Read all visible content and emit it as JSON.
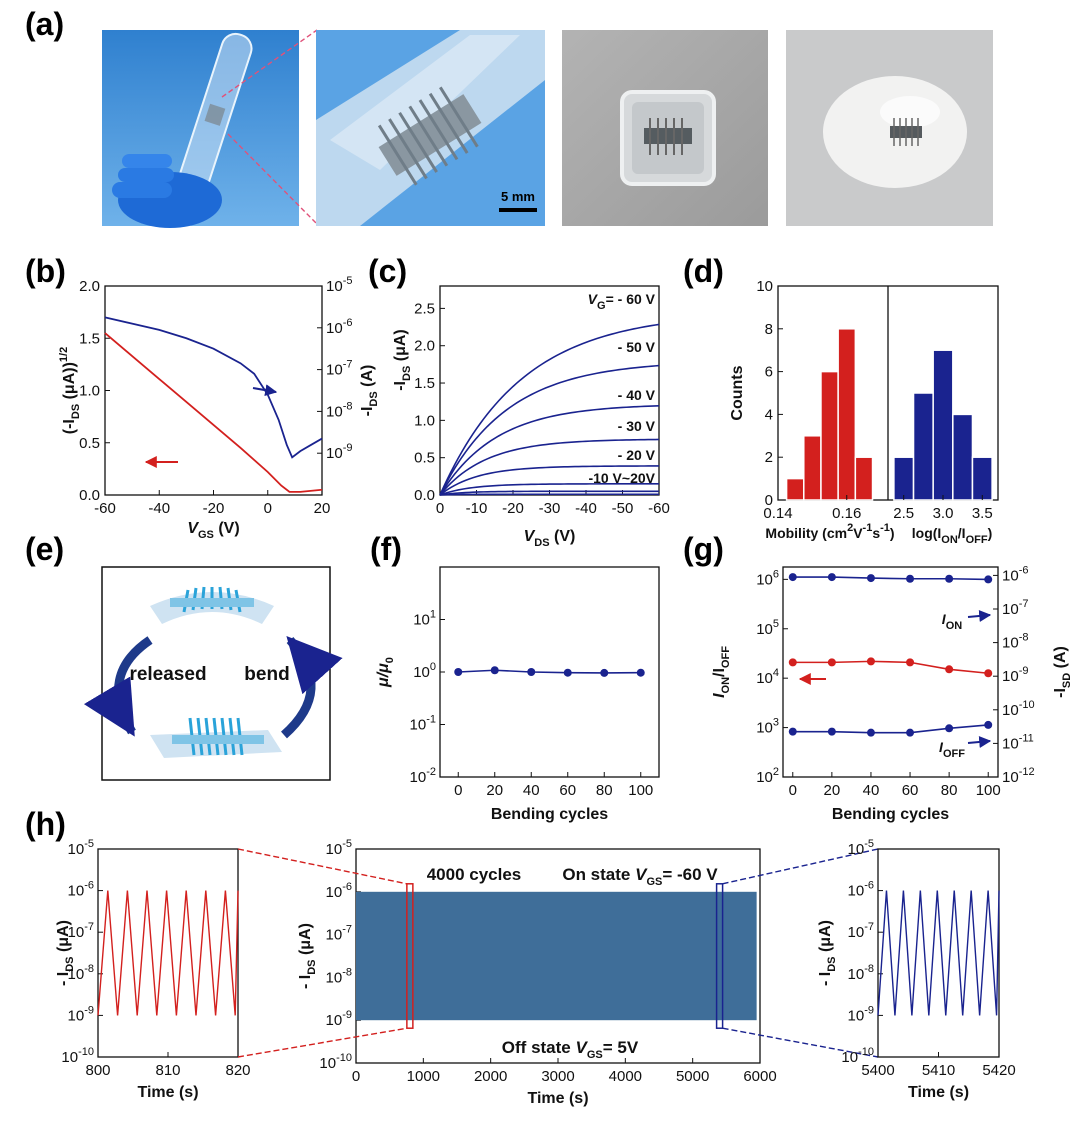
{
  "panel_labels": {
    "a": "(a)",
    "b": "(b)",
    "c": "(c)",
    "d": "(d)",
    "e": "(e)",
    "f": "(f)",
    "g": "(g)",
    "h": "(h)"
  },
  "photos": {
    "scale_bar": "5 mm"
  },
  "colors": {
    "blue": "#1a238f",
    "red": "#d3201e",
    "photo_sky": "#3d8fd6",
    "glove": "#1e6ad6",
    "photo_gray": "#a7a7a7",
    "fill_blue": "#3f6e99"
  },
  "chart_data": [
    {
      "id": "b",
      "type": "line",
      "xlabel": "V",
      "xlabel_sub": "GS",
      "xlabel_unit": " (V)",
      "ylabel": "(-I",
      "ylabel_sub": "DS",
      "ylabel_rest": " (μA))",
      "ylabel_sup": "1/2",
      "y2label": "-I",
      "y2label_sub": "DS",
      "y2label_unit": " (A)",
      "xlim": [
        -60,
        20
      ],
      "ylim": [
        0,
        2.0
      ],
      "xticks": [
        "-60",
        "-40",
        "-20",
        "0",
        "20"
      ],
      "yticks": [
        "0.0",
        "0.5",
        "1.0",
        "1.5",
        "2.0"
      ],
      "y2lim_exp": [
        -10,
        -5
      ],
      "y2ticks": [
        "10",
        "10",
        "10",
        "10",
        "10"
      ],
      "y2ticks_exp": [
        "-9",
        "-8",
        "-7",
        "-6",
        "-5"
      ],
      "series": [
        {
          "name": "sqrt(-IDS)",
          "axis": "left",
          "color": "#d3201e",
          "x": [
            -60,
            -50,
            -40,
            -30,
            -20,
            -10,
            0,
            5,
            8,
            12,
            20
          ],
          "y": [
            1.55,
            1.33,
            1.11,
            0.89,
            0.67,
            0.45,
            0.22,
            0.09,
            0.03,
            0.03,
            0.05
          ]
        },
        {
          "name": "-IDS",
          "axis": "right",
          "color": "#1a238f",
          "x": [
            -60,
            -50,
            -40,
            -30,
            -20,
            -10,
            -5,
            0,
            4,
            7,
            9,
            12,
            16,
            20
          ],
          "logy": [
            -5.75,
            -5.9,
            -6.05,
            -6.25,
            -6.5,
            -6.85,
            -7.1,
            -7.6,
            -8.2,
            -8.8,
            -9.1,
            -8.95,
            -8.8,
            -8.65
          ]
        }
      ]
    },
    {
      "id": "c",
      "type": "line",
      "xlabel": "V",
      "xlabel_sub": "DS",
      "xlabel_unit": " (V)",
      "ylabel": "-I",
      "ylabel_sub": "DS",
      "ylabel_unit": " (μA)",
      "xlim": [
        0,
        -60
      ],
      "ylim": [
        0,
        2.8
      ],
      "xticks": [
        "0",
        "-10",
        "-20",
        "-30",
        "-40",
        "-50",
        "-60"
      ],
      "yticks": [
        "0.0",
        "0.5",
        "1.0",
        "1.5",
        "2.0",
        "2.5"
      ],
      "curve_labels": [
        "= - 60 V",
        "- 50 V",
        "- 40 V",
        "- 30 V",
        "- 20 V",
        "-10 V~20V"
      ],
      "curve_label_prefix": "V",
      "curve_label_sub": "G",
      "series": [
        {
          "name": "VG=-60V",
          "isat": 2.45,
          "k": 0.045
        },
        {
          "name": "VG=-50V",
          "isat": 1.8,
          "k": 0.055
        },
        {
          "name": "VG=-40V",
          "isat": 1.22,
          "k": 0.065
        },
        {
          "name": "VG=-30V",
          "isat": 0.75,
          "k": 0.08
        },
        {
          "name": "VG=-20V",
          "isat": 0.39,
          "k": 0.1
        },
        {
          "name": "VG=-10V",
          "isat": 0.15,
          "k": 0.12
        },
        {
          "name": "VG=0V",
          "isat": 0.05,
          "k": 0.15
        },
        {
          "name": "VG=20V",
          "isat": 0.01,
          "k": 0.2
        }
      ]
    },
    {
      "id": "d",
      "type": "bar",
      "ylabel": "Counts",
      "ylim": [
        0,
        10
      ],
      "yticks": [
        "0",
        "2",
        "4",
        "6",
        "8",
        "10"
      ],
      "left": {
        "xlabel": "Mobility (cm",
        "xlabel_sup1": "2",
        "xlabel_mid": "V",
        "xlabel_sup2": "-1",
        "xlabel_end": "s",
        "xlabel_sup3": "-1",
        "xlabel_close": ")",
        "xlim": [
          0.14,
          0.172
        ],
        "xticks": [
          "0.14",
          "0.16"
        ],
        "xtick_vals": [
          0.14,
          0.16
        ],
        "bin_width": 0.005,
        "color": "#d3201e",
        "bins": [
          0.145,
          0.15,
          0.155,
          0.16,
          0.165
        ],
        "counts": [
          1,
          3,
          6,
          8,
          2
        ]
      },
      "right": {
        "xlabel": "log(I",
        "xlabel_sub1": "ON",
        "xlabel_mid": "/I",
        "xlabel_sub2": "OFF",
        "xlabel_end": ")",
        "xlim": [
          2.3,
          3.7
        ],
        "xticks": [
          "2.5",
          "3.0",
          "3.5"
        ],
        "xtick_vals": [
          2.5,
          3.0,
          3.5
        ],
        "bin_width": 0.25,
        "color": "#1a238f",
        "bins": [
          2.5,
          2.75,
          3.0,
          3.25,
          3.5
        ],
        "counts": [
          2,
          5,
          7,
          4,
          2
        ]
      }
    },
    {
      "id": "f",
      "type": "scatter",
      "xlabel": "Bending cycles",
      "ylabel": "μ/μ",
      "ylabel_sub": "0",
      "xlim": [
        -10,
        110
      ],
      "ylim_exp": [
        -2,
        2
      ],
      "xticks": [
        "0",
        "20",
        "40",
        "60",
        "80",
        "100"
      ],
      "yticks": [
        "10",
        "10",
        "10",
        "10"
      ],
      "yticks_exp": [
        "-2",
        "-1",
        "0",
        "1"
      ],
      "color": "#1a238f",
      "x": [
        0,
        20,
        40,
        60,
        80,
        100
      ],
      "y": [
        1.0,
        1.08,
        1.0,
        0.97,
        0.96,
        0.97
      ]
    },
    {
      "id": "g",
      "type": "scatter",
      "xlabel": "Bending cycles",
      "ylabel": "I",
      "ylabel_sub1": "ON",
      "ylabel_mid": "/I",
      "ylabel_sub2": "OFF",
      "y2label": "-I",
      "y2label_sub": "SD",
      "y2label_unit": " (A)",
      "xlim": [
        -5,
        105
      ],
      "ylim_exp": [
        2,
        6.25
      ],
      "y2lim_exp": [
        -12,
        -5.75
      ],
      "xticks": [
        "0",
        "20",
        "40",
        "60",
        "80",
        "100"
      ],
      "yticks": [
        "10",
        "10",
        "10",
        "10",
        "10"
      ],
      "yticks_exp": [
        "2",
        "3",
        "4",
        "5",
        "6"
      ],
      "y2ticks": [
        "10",
        "10",
        "10",
        "10",
        "10",
        "10",
        "10"
      ],
      "y2ticks_exp": [
        "-12",
        "-11",
        "-10",
        "-9",
        "-8",
        "-7",
        "-6"
      ],
      "x": [
        0,
        20,
        40,
        60,
        80,
        100
      ],
      "series": [
        {
          "name": "ION",
          "axis": "right",
          "color": "#1a238f",
          "logy": [
            -6.05,
            -6.05,
            -6.08,
            -6.1,
            -6.1,
            -6.12
          ],
          "label": "I",
          "label_sub": "ON"
        },
        {
          "name": "ION/IOFF",
          "axis": "left",
          "color": "#d3201e",
          "logy": [
            4.32,
            4.32,
            4.34,
            4.32,
            4.18,
            4.1
          ]
        },
        {
          "name": "IOFF",
          "axis": "right",
          "color": "#1a238f",
          "logy": [
            -10.65,
            -10.65,
            -10.68,
            -10.68,
            -10.55,
            -10.45
          ],
          "label": "I",
          "label_sub": "OFF"
        }
      ]
    },
    {
      "id": "h_left",
      "type": "line",
      "xlabel": "Time  (s)",
      "ylabel": "- I",
      "ylabel_sub": "DS",
      "ylabel_unit": "  (μA)",
      "xlim": [
        800,
        820
      ],
      "xticks": [
        "800",
        "810",
        "820"
      ],
      "ylim_exp": [
        -10,
        -5
      ],
      "yticks": [
        "10",
        "10",
        "10",
        "10",
        "10",
        "10"
      ],
      "yticks_exp": [
        "-10",
        "-9",
        "-8",
        "-7",
        "-6",
        "-5"
      ],
      "color": "#d3201e",
      "period_s": 2.8,
      "low_exp": -9,
      "high_exp": -6
    },
    {
      "id": "h_main",
      "type": "area",
      "xlabel": "Time  (s)",
      "ylabel": "- I",
      "ylabel_sub": "DS",
      "ylabel_unit": "  (μA)",
      "xlim": [
        0,
        6000
      ],
      "xticks": [
        "0",
        "1000",
        "2000",
        "3000",
        "4000",
        "5000",
        "6000"
      ],
      "ylim_exp": [
        -10,
        -5
      ],
      "yticks": [
        "10",
        "10",
        "10",
        "10",
        "10",
        "10"
      ],
      "yticks_exp": [
        "-10",
        "-9",
        "-8",
        "-7",
        "-6",
        "-5"
      ],
      "fill_color": "#3f6e99",
      "x_range": [
        0,
        5950
      ],
      "low_exp": -9,
      "high_exp": -6,
      "ann_cycles": "4000 cycles",
      "ann_on": "On state ",
      "ann_on_v": "V",
      "ann_on_sub": "GS",
      "ann_on_val": "= -60 V",
      "ann_off": "Off state ",
      "ann_off_v": "V",
      "ann_off_sub": "GS",
      "ann_off_val": "= 5V",
      "zoom_left": [
        800,
        820
      ],
      "zoom_right": [
        5400,
        5420
      ]
    },
    {
      "id": "h_right",
      "type": "line",
      "xlabel": "Time  (s)",
      "ylabel": "- I",
      "ylabel_sub": "DS",
      "ylabel_unit": "  (μA)",
      "xlim": [
        5400,
        5420
      ],
      "xticks": [
        "5400",
        "5410",
        "5420"
      ],
      "ylim_exp": [
        -10,
        -5
      ],
      "yticks": [
        "10",
        "10",
        "10",
        "10",
        "10",
        "10"
      ],
      "yticks_exp": [
        "-10",
        "-9",
        "-8",
        "-7",
        "-6",
        "-5"
      ],
      "color": "#1a238f",
      "period_s": 2.8,
      "low_exp": -9,
      "high_exp": -6
    }
  ],
  "schematic": {
    "left_label": "released",
    "right_label": "bend"
  }
}
